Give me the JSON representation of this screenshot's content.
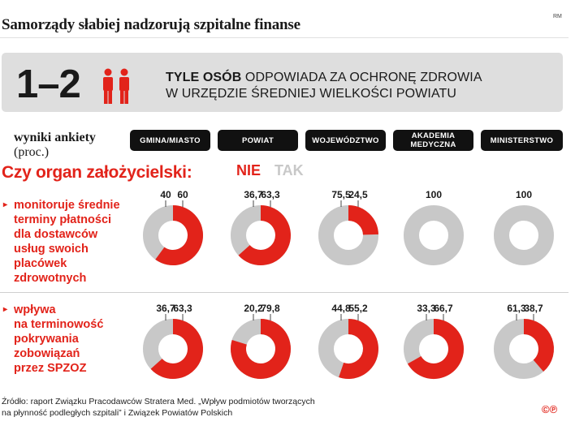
{
  "title": "Samorządy słabiej nadzorują szpitalne finanse",
  "credit": "RM",
  "banner": {
    "big_number": "1–2",
    "icon": "people-icon",
    "text_bold": "TYLE OSÓB",
    "text_line1_rest": " ODPOWIADA ZA OCHRONĘ ZDROWIA",
    "text_line2": "W URZĘDZIE ŚREDNIEJ WIELKOŚCI POWIATU"
  },
  "survey": {
    "label": "wyniki ankiety",
    "unit": "(proc.)"
  },
  "question": "Czy organ założycielski:",
  "legend": {
    "nie": "NIE",
    "tak": "TAK",
    "nie_color": "#e2231a",
    "tak_color": "#c8c8c8"
  },
  "columns": [
    "GMINA/MIASTO",
    "POWIAT",
    "WOJEWÓDZTWO",
    "AKADEMIA MEDYCZNA",
    "MINISTERSTWO"
  ],
  "rows": [
    {
      "label_lines": [
        "monitoruje średnie",
        "terminy płatności",
        "dla dostawców",
        "usług swoich",
        "placówek",
        "zdrowotnych"
      ]
    },
    {
      "label_lines": [
        "wpływa",
        "na terminowość",
        "pokrywania",
        "zobowiązań",
        "przez SPZOZ"
      ]
    }
  ],
  "chart_data": {
    "type": "pie",
    "variant": "donut",
    "series_names": [
      "NIE",
      "TAK"
    ],
    "categories": [
      "GMINA/MIASTO",
      "POWIAT",
      "WOJEWÓDZTWO",
      "AKADEMIA MEDYCZNA",
      "MINISTERSTWO"
    ],
    "rows": [
      {
        "label": "monitoruje średnie terminy płatności dla dostawców usług swoich placówek zdrowotnych",
        "values": [
          {
            "nie": "60",
            "tak": "40"
          },
          {
            "nie": "63,3",
            "tak": "36,7"
          },
          {
            "nie": "24,5",
            "tak": "75,5"
          },
          {
            "nie": "",
            "tak": "100"
          },
          {
            "nie": "",
            "tak": "100"
          }
        ]
      },
      {
        "label": "wpływa na terminowość pokrywania zobowiązań przez SPZOZ",
        "values": [
          {
            "nie": "63,3",
            "tak": "36,7"
          },
          {
            "nie": "79,8",
            "tak": "20,2"
          },
          {
            "nie": "55,2",
            "tak": "44,8"
          },
          {
            "nie": "66,7",
            "tak": "33,3"
          },
          {
            "nie": "38,7",
            "tak": "61,3"
          }
        ]
      }
    ]
  },
  "source": {
    "line1": "Źródło: raport Związku Pracodawców Stratera Med. „Wpływ podmiotów tworzących",
    "line2": "na płynność podległych szpitali” i Związek Powiatów Polskich"
  },
  "logo": "©℗"
}
